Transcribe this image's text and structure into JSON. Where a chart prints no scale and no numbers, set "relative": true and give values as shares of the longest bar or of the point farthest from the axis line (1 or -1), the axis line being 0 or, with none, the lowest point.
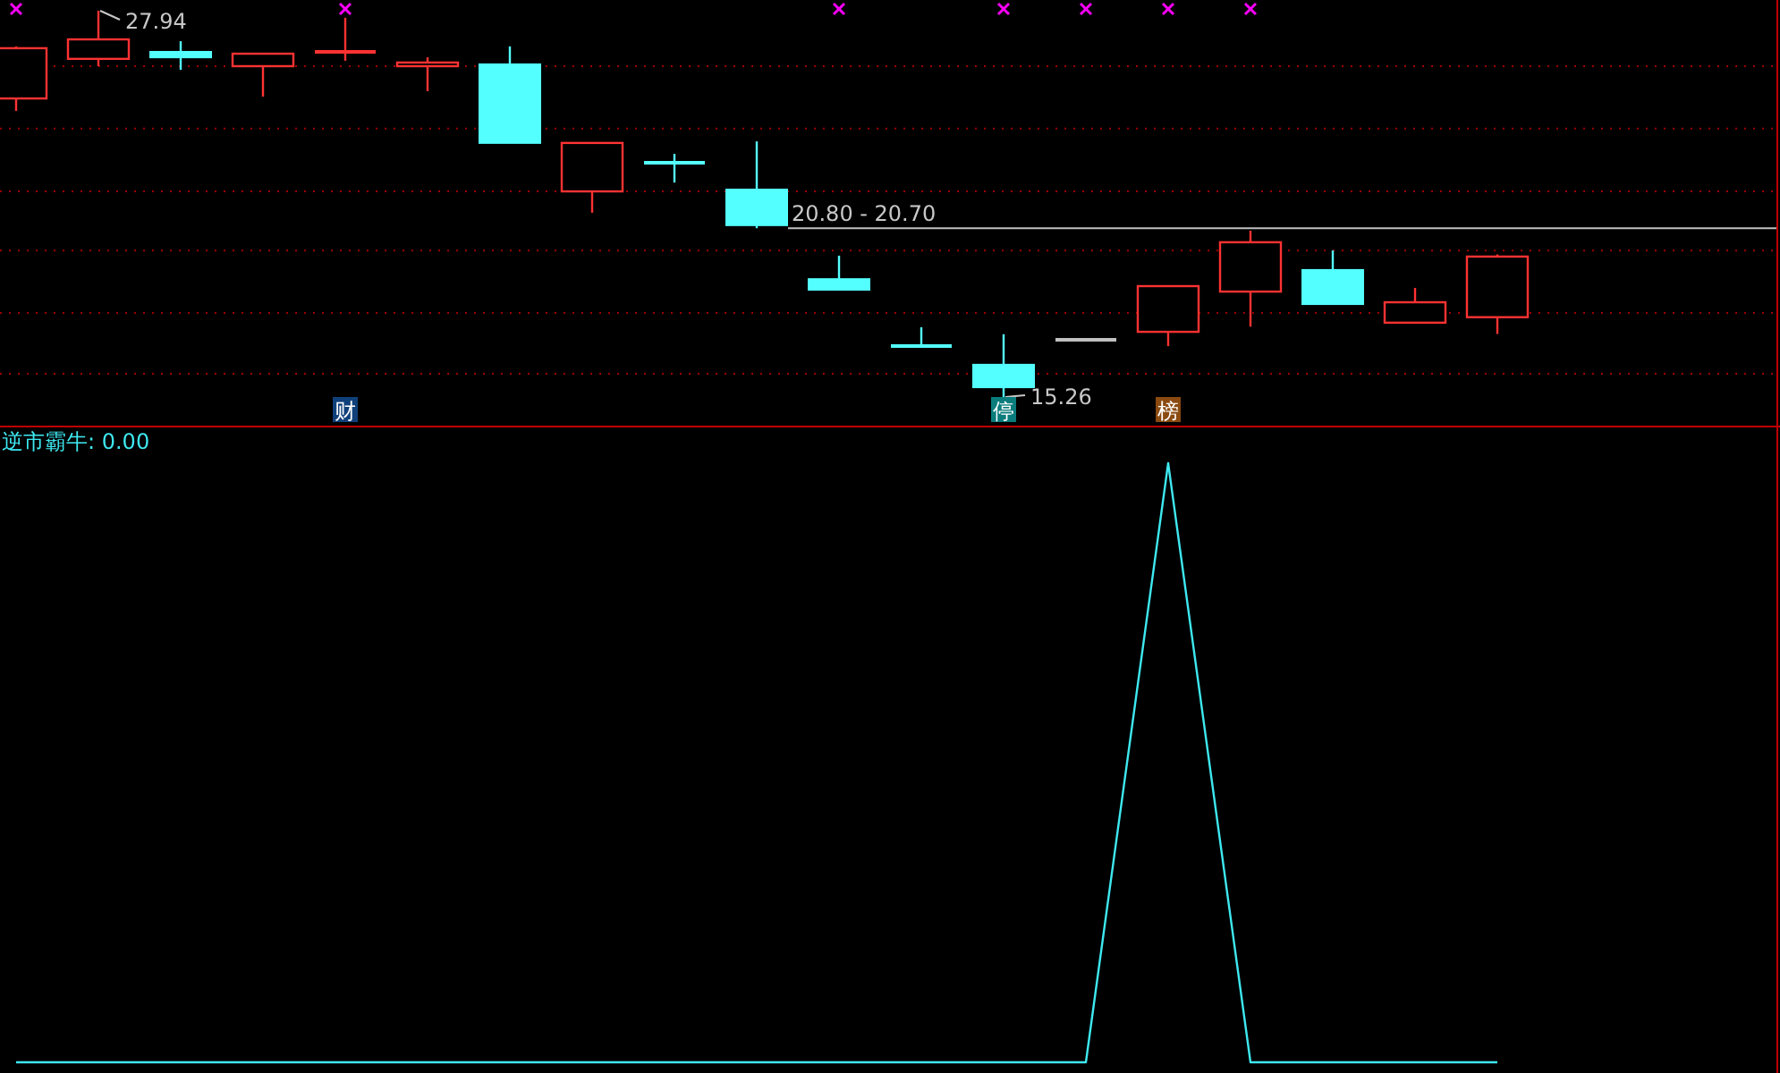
{
  "chart_data": [
    {
      "type": "candlestick",
      "categories": [
        null,
        null,
        null,
        null,
        null,
        null,
        null,
        null,
        null,
        null,
        null,
        null,
        null,
        null,
        null,
        null,
        null,
        null,
        null
      ],
      "ohlc": [
        [
          25.06,
          26.77,
          24.65,
          26.71
        ],
        [
          26.36,
          27.94,
          26.12,
          27.0
        ],
        [
          26.59,
          26.94,
          26.0,
          26.41
        ],
        [
          26.12,
          26.53,
          25.12,
          26.53
        ],
        [
          26.59,
          27.71,
          26.3,
          26.59
        ],
        [
          26.12,
          26.41,
          25.3,
          26.24
        ],
        [
          26.18,
          26.77,
          23.6,
          23.6
        ],
        [
          22.01,
          23.6,
          21.31,
          23.6
        ],
        [
          22.95,
          23.24,
          22.3,
          22.95
        ],
        [
          22.07,
          23.65,
          20.8,
          20.9
        ],
        [
          19.13,
          19.9,
          18.78,
          18.78
        ],
        [
          16.93,
          17.55,
          16.93,
          16.93
        ],
        [
          16.32,
          17.32,
          15.26,
          15.58
        ],
        [
          17.14,
          17.14,
          17.14,
          17.14
        ],
        [
          17.4,
          18.9,
          16.93,
          18.9
        ],
        [
          18.72,
          20.72,
          17.57,
          20.34
        ],
        [
          19.43,
          20.07,
          18.31,
          18.31
        ],
        [
          17.7,
          18.84,
          17.7,
          18.37
        ],
        [
          17.88,
          19.94,
          17.33,
          19.87
        ]
      ],
      "colors": [
        "#ff3232",
        "#ff3232",
        "#54ffff",
        "#ff3232",
        "#ff3232",
        "#ff3232",
        "#54ffff",
        "#ff3232",
        "#54ffff",
        "#54ffff",
        "#54ffff",
        "#54ffff",
        "#54ffff",
        "#c0c0c0",
        "#ff3232",
        "#ff3232",
        "#54ffff",
        "#ff3232",
        "#ff3232"
      ],
      "value_labels": [
        null,
        null,
        null,
        null,
        "财",
        null,
        null,
        null,
        null,
        null,
        null,
        null,
        "停",
        null,
        "榜",
        null,
        null,
        null,
        null
      ],
      "series": [
        {
          "type": "scatter",
          "marker": "cross",
          "color": "#ff00ff",
          "values": [
            28.0,
            null,
            null,
            null,
            28.0,
            null,
            null,
            null,
            null,
            null,
            28.0,
            null,
            28.0,
            28.0,
            28.0,
            28.0,
            null,
            null,
            null
          ]
        }
      ],
      "annotations": [
        "27.94",
        "15.26"
      ],
      "yticks": [
        {
          "value": 26.12,
          "label": null
        },
        {
          "value": 24.07,
          "label": null
        },
        {
          "value": 22.01,
          "label": null
        },
        {
          "value": 20.07,
          "label": null
        },
        {
          "value": 18.02,
          "label": null
        },
        {
          "value": 16.02,
          "label": null
        }
      ],
      "ref_lines": [
        {
          "axis": "y",
          "value": 20.8,
          "label": "20.80 - 20.70",
          "color": "#c0c0c0"
        }
      ],
      "grid": "y"
    },
    {
      "type": "line",
      "title": "逆市霸牛: 0.00",
      "relative": true,
      "categories": [
        null,
        null,
        null,
        null,
        null,
        null,
        null,
        null,
        null,
        null,
        null,
        null,
        null,
        null,
        null,
        null,
        null,
        null,
        null
      ],
      "series": [
        {
          "color": "#3ee8f0",
          "values": [
            0,
            0,
            0,
            0,
            0,
            0,
            0,
            0,
            0,
            0,
            0,
            0,
            0,
            0,
            1,
            0,
            0,
            0,
            0
          ]
        }
      ]
    }
  ]
}
